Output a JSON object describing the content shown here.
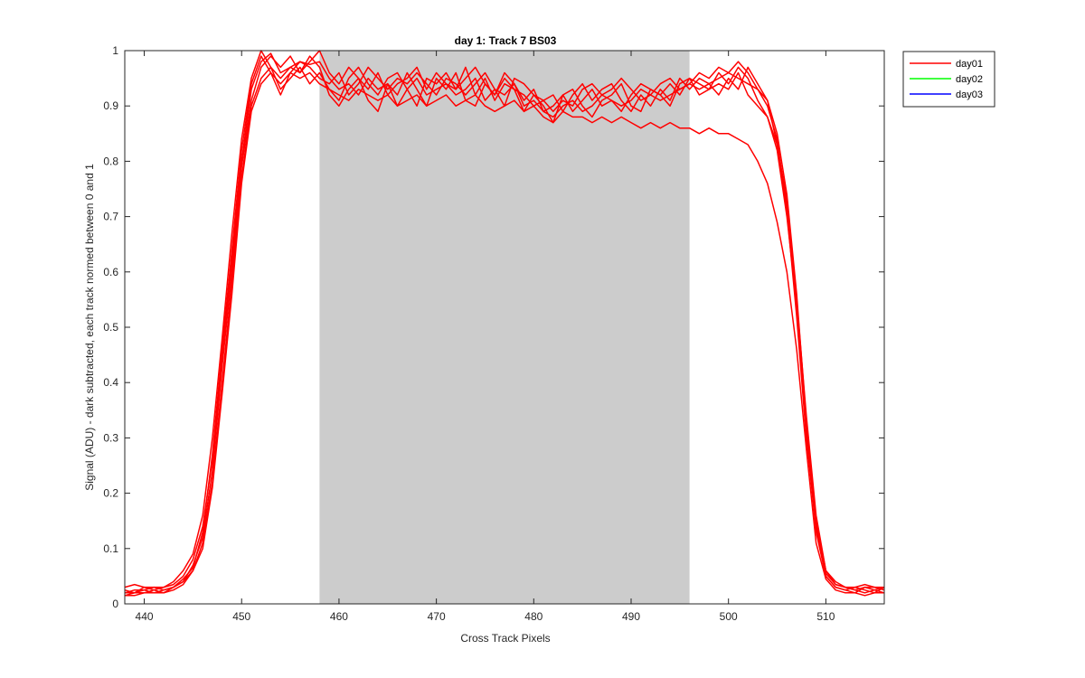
{
  "chart_data": {
    "type": "line",
    "title": "day 1: Track 7  BS03",
    "xlabel": "Cross Track Pixels",
    "ylabel": "Signal (ADU) - dark subtracted, each track normed between 0 and 1",
    "xlim": [
      438,
      516
    ],
    "ylim": [
      0,
      1
    ],
    "xticks": [
      440,
      450,
      460,
      470,
      480,
      490,
      500,
      510
    ],
    "yticks": [
      0,
      0.1,
      0.2,
      0.3,
      0.4,
      0.5,
      0.6,
      0.7,
      0.8,
      0.9,
      1
    ],
    "shaded_region": {
      "x": [
        458,
        496
      ],
      "color": "#cccccc"
    },
    "grid": false,
    "legend": {
      "placement": "outside-top-right",
      "entries": [
        {
          "label": "day01",
          "color": "#ff0000"
        },
        {
          "label": "day02",
          "color": "#00ff00"
        },
        {
          "label": "day03",
          "color": "#0000ff"
        }
      ]
    },
    "x": [
      438,
      439,
      440,
      441,
      442,
      443,
      444,
      445,
      446,
      447,
      448,
      449,
      450,
      451,
      452,
      453,
      454,
      455,
      456,
      457,
      458,
      459,
      460,
      461,
      462,
      463,
      464,
      465,
      466,
      467,
      468,
      469,
      470,
      471,
      472,
      473,
      474,
      475,
      476,
      477,
      478,
      479,
      480,
      481,
      482,
      483,
      484,
      485,
      486,
      487,
      488,
      489,
      490,
      491,
      492,
      493,
      494,
      495,
      496,
      497,
      498,
      499,
      500,
      501,
      502,
      503,
      504,
      505,
      506,
      507,
      508,
      509,
      510,
      511,
      512,
      513,
      514,
      515,
      516
    ],
    "series": [
      {
        "color": "#ff0000",
        "values": [
          0.02,
          0.02,
          0.025,
          0.03,
          0.03,
          0.035,
          0.05,
          0.08,
          0.14,
          0.26,
          0.45,
          0.62,
          0.8,
          0.93,
          0.98,
          0.995,
          0.96,
          0.97,
          0.98,
          0.975,
          0.98,
          0.95,
          0.93,
          0.94,
          0.92,
          0.95,
          0.93,
          0.94,
          0.9,
          0.93,
          0.95,
          0.92,
          0.93,
          0.94,
          0.92,
          0.93,
          0.95,
          0.91,
          0.93,
          0.92,
          0.94,
          0.9,
          0.91,
          0.89,
          0.88,
          0.9,
          0.91,
          0.89,
          0.9,
          0.92,
          0.91,
          0.9,
          0.91,
          0.93,
          0.92,
          0.91,
          0.92,
          0.93,
          0.94,
          0.93,
          0.94,
          0.95,
          0.96,
          0.95,
          0.94,
          0.93,
          0.91,
          0.85,
          0.74,
          0.56,
          0.33,
          0.15,
          0.06,
          0.035,
          0.03,
          0.025,
          0.03,
          0.025,
          0.03
        ]
      },
      {
        "color": "#ff0000",
        "values": [
          0.03,
          0.035,
          0.03,
          0.025,
          0.03,
          0.04,
          0.06,
          0.09,
          0.16,
          0.3,
          0.48,
          0.67,
          0.84,
          0.95,
          1.0,
          0.97,
          0.95,
          0.97,
          0.96,
          0.99,
          0.97,
          0.92,
          0.9,
          0.93,
          0.95,
          0.91,
          0.89,
          0.94,
          0.92,
          0.96,
          0.93,
          0.9,
          0.95,
          0.93,
          0.96,
          0.91,
          0.9,
          0.94,
          0.92,
          0.95,
          0.93,
          0.89,
          0.92,
          0.9,
          0.87,
          0.92,
          0.93,
          0.9,
          0.88,
          0.91,
          0.92,
          0.94,
          0.9,
          0.89,
          0.93,
          0.92,
          0.9,
          0.94,
          0.95,
          0.92,
          0.93,
          0.94,
          0.93,
          0.96,
          0.92,
          0.9,
          0.88,
          0.83,
          0.72,
          0.53,
          0.31,
          0.13,
          0.05,
          0.03,
          0.025,
          0.03,
          0.035,
          0.03,
          0.025
        ]
      },
      {
        "color": "#ff0000",
        "values": [
          0.025,
          0.02,
          0.03,
          0.03,
          0.025,
          0.03,
          0.04,
          0.07,
          0.12,
          0.24,
          0.43,
          0.6,
          0.79,
          0.91,
          0.97,
          0.99,
          0.97,
          0.99,
          0.96,
          0.98,
          1.0,
          0.96,
          0.94,
          0.97,
          0.95,
          0.93,
          0.96,
          0.92,
          0.94,
          0.95,
          0.97,
          0.93,
          0.96,
          0.94,
          0.93,
          0.97,
          0.92,
          0.95,
          0.91,
          0.94,
          0.93,
          0.92,
          0.9,
          0.91,
          0.89,
          0.91,
          0.9,
          0.93,
          0.94,
          0.92,
          0.93,
          0.95,
          0.93,
          0.91,
          0.92,
          0.94,
          0.95,
          0.93,
          0.94,
          0.96,
          0.95,
          0.97,
          0.96,
          0.98,
          0.96,
          0.93,
          0.9,
          0.84,
          0.71,
          0.52,
          0.3,
          0.14,
          0.05,
          0.03,
          0.025,
          0.02,
          0.03,
          0.03,
          0.03
        ]
      },
      {
        "color": "#ff0000",
        "values": [
          0.015,
          0.02,
          0.02,
          0.025,
          0.02,
          0.03,
          0.04,
          0.06,
          0.11,
          0.22,
          0.4,
          0.58,
          0.77,
          0.9,
          0.95,
          0.97,
          0.93,
          0.95,
          0.97,
          0.94,
          0.96,
          0.93,
          0.91,
          0.95,
          0.97,
          0.94,
          0.92,
          0.95,
          0.96,
          0.93,
          0.9,
          0.95,
          0.94,
          0.96,
          0.93,
          0.95,
          0.97,
          0.94,
          0.92,
          0.96,
          0.94,
          0.91,
          0.93,
          0.89,
          0.9,
          0.92,
          0.89,
          0.91,
          0.93,
          0.9,
          0.91,
          0.89,
          0.92,
          0.94,
          0.93,
          0.92,
          0.94,
          0.92,
          0.95,
          0.94,
          0.93,
          0.96,
          0.94,
          0.97,
          0.95,
          0.91,
          0.88,
          0.82,
          0.7,
          0.54,
          0.32,
          0.14,
          0.055,
          0.035,
          0.03,
          0.025,
          0.02,
          0.025,
          0.02
        ]
      },
      {
        "color": "#ff0000",
        "values": [
          0.02,
          0.025,
          0.025,
          0.02,
          0.025,
          0.03,
          0.045,
          0.065,
          0.13,
          0.27,
          0.46,
          0.64,
          0.82,
          0.94,
          0.99,
          0.96,
          0.92,
          0.96,
          0.98,
          0.97,
          0.95,
          0.94,
          0.96,
          0.92,
          0.94,
          0.97,
          0.95,
          0.93,
          0.95,
          0.94,
          0.96,
          0.94,
          0.92,
          0.95,
          0.94,
          0.92,
          0.94,
          0.96,
          0.93,
          0.9,
          0.95,
          0.94,
          0.92,
          0.91,
          0.92,
          0.89,
          0.92,
          0.94,
          0.91,
          0.93,
          0.94,
          0.91,
          0.89,
          0.92,
          0.9,
          0.93,
          0.91,
          0.95,
          0.93,
          0.95,
          0.94,
          0.92,
          0.95,
          0.93,
          0.97,
          0.94,
          0.91,
          0.83,
          0.73,
          0.55,
          0.34,
          0.16,
          0.06,
          0.04,
          0.03,
          0.03,
          0.025,
          0.02,
          0.03
        ]
      },
      {
        "color": "#ff0000",
        "values": [
          0.015,
          0.015,
          0.02,
          0.02,
          0.02,
          0.025,
          0.035,
          0.06,
          0.1,
          0.21,
          0.38,
          0.56,
          0.76,
          0.89,
          0.94,
          0.96,
          0.94,
          0.96,
          0.95,
          0.96,
          0.94,
          0.93,
          0.92,
          0.91,
          0.93,
          0.92,
          0.91,
          0.92,
          0.9,
          0.91,
          0.92,
          0.9,
          0.91,
          0.92,
          0.9,
          0.91,
          0.92,
          0.9,
          0.89,
          0.9,
          0.91,
          0.89,
          0.9,
          0.88,
          0.87,
          0.89,
          0.88,
          0.88,
          0.87,
          0.88,
          0.87,
          0.88,
          0.87,
          0.86,
          0.87,
          0.86,
          0.87,
          0.86,
          0.86,
          0.85,
          0.86,
          0.85,
          0.85,
          0.84,
          0.83,
          0.8,
          0.76,
          0.69,
          0.6,
          0.46,
          0.28,
          0.11,
          0.045,
          0.025,
          0.02,
          0.02,
          0.015,
          0.02,
          0.02
        ]
      }
    ]
  }
}
